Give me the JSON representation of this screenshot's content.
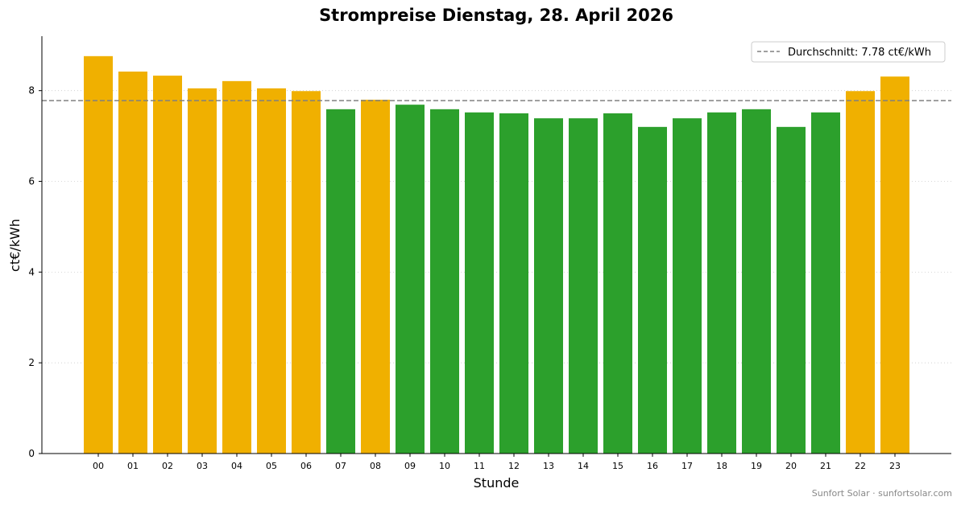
{
  "chart_data": {
    "type": "bar",
    "title": "Strompreise Dienstag, 28. April 2026",
    "xlabel": "Stunde",
    "ylabel": "ct€/kWh",
    "categories": [
      "00",
      "01",
      "02",
      "03",
      "04",
      "05",
      "06",
      "07",
      "08",
      "09",
      "10",
      "11",
      "12",
      "13",
      "14",
      "15",
      "16",
      "17",
      "18",
      "19",
      "20",
      "21",
      "22",
      "23"
    ],
    "values": [
      8.76,
      8.42,
      8.33,
      8.05,
      8.21,
      8.05,
      7.99,
      7.59,
      7.8,
      7.69,
      7.59,
      7.52,
      7.5,
      7.39,
      7.39,
      7.5,
      7.2,
      7.39,
      7.52,
      7.59,
      7.2,
      7.52,
      7.99,
      8.31
    ],
    "bar_colors": [
      "#f0b000",
      "#f0b000",
      "#f0b000",
      "#f0b000",
      "#f0b000",
      "#f0b000",
      "#f0b000",
      "#2ca02c",
      "#f0b000",
      "#2ca02c",
      "#2ca02c",
      "#2ca02c",
      "#2ca02c",
      "#2ca02c",
      "#2ca02c",
      "#2ca02c",
      "#2ca02c",
      "#2ca02c",
      "#2ca02c",
      "#2ca02c",
      "#2ca02c",
      "#2ca02c",
      "#f0b000",
      "#f0b000"
    ],
    "ylim": [
      0,
      9.2
    ],
    "yticks": [
      0,
      2,
      4,
      6,
      8
    ],
    "average": {
      "value": 7.78,
      "label": "Durchschnitt: 7.78 ct€/kWh",
      "color": "#808080"
    },
    "grid": "y-dotted",
    "legend_position": "top-right",
    "colors": {
      "high": "#f0b000",
      "low": "#2ca02c"
    }
  },
  "footer": {
    "credit": "Sunfort Solar · sunfortsolar.com"
  }
}
